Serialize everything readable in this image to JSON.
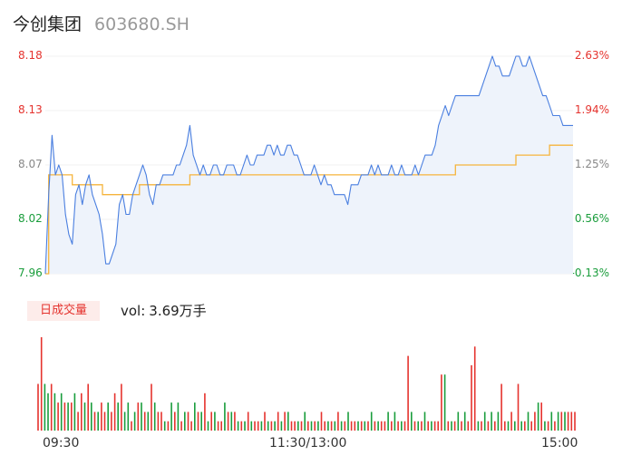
{
  "header": {
    "stock_name": "今创集团",
    "stock_code": "603680.SH"
  },
  "price_axis_labels": [
    "8.18",
    "8.13",
    "8.07",
    "8.02",
    "7.96"
  ],
  "pct_axis_labels": [
    "2.63%",
    "1.94%",
    "1.25%",
    "0.56%",
    "-0.13%"
  ],
  "volume_panel": {
    "badge": "日成交量",
    "vol_label": "vol:",
    "vol_value": "3.69万手"
  },
  "time_labels": [
    "09:30",
    "11:30/13:00",
    "15:00"
  ],
  "colors": {
    "price_line": "#4a7fe0",
    "avg_line": "#f5b43c",
    "up": "#e5332e",
    "down": "#1a9d3c",
    "flat": "#888888",
    "area_fill": "#eef3fb"
  },
  "chart_data": {
    "type": "line",
    "x_range": [
      "09:30",
      "15:00"
    ],
    "ylim": [
      7.96,
      8.18
    ],
    "y2lim": [
      -0.13,
      2.63
    ],
    "series": [
      {
        "values": [
          7.96,
          8.04,
          8.1,
          8.06,
          8.07,
          8.06,
          8.02,
          8.0,
          7.99,
          8.04,
          8.05,
          8.03,
          8.05,
          8.06,
          8.04,
          8.03,
          8.02,
          8.0,
          7.97,
          7.97,
          7.98,
          7.99,
          8.03,
          8.04,
          8.02,
          8.02,
          8.04,
          8.05,
          8.06,
          8.07,
          8.06,
          8.04,
          8.03,
          8.05,
          8.05,
          8.06,
          8.06,
          8.06,
          8.06,
          8.07,
          8.07,
          8.08,
          8.09,
          8.11,
          8.08,
          8.07,
          8.06,
          8.07,
          8.06,
          8.06,
          8.07,
          8.07,
          8.06,
          8.06,
          8.07,
          8.07,
          8.07,
          8.06,
          8.06,
          8.07,
          8.08,
          8.07,
          8.07,
          8.08,
          8.08,
          8.08,
          8.09,
          8.09,
          8.08,
          8.09,
          8.08,
          8.08,
          8.09,
          8.09,
          8.08,
          8.08,
          8.07,
          8.06,
          8.06,
          8.06,
          8.07,
          8.06,
          8.05,
          8.06,
          8.05,
          8.05,
          8.04,
          8.04,
          8.04,
          8.04,
          8.03,
          8.05,
          8.05,
          8.05,
          8.06,
          8.06,
          8.06,
          8.07,
          8.06,
          8.07,
          8.06,
          8.06,
          8.06,
          8.07,
          8.06,
          8.06,
          8.07,
          8.06,
          8.06,
          8.06,
          8.07,
          8.06,
          8.07,
          8.08,
          8.08,
          8.08,
          8.09,
          8.11,
          8.12,
          8.13,
          8.12,
          8.13,
          8.14,
          8.14,
          8.14,
          8.14,
          8.14,
          8.14,
          8.14,
          8.14,
          8.15,
          8.16,
          8.17,
          8.18,
          8.17,
          8.17,
          8.16,
          8.16,
          8.16,
          8.17,
          8.18,
          8.18,
          8.17,
          8.17,
          8.18,
          8.17,
          8.16,
          8.15,
          8.14,
          8.14,
          8.13,
          8.12,
          8.12,
          8.12,
          8.11,
          8.11,
          8.11,
          8.11
        ]
      },
      {
        "values": [
          7.96,
          8.06,
          8.06,
          8.06,
          8.06,
          8.06,
          8.06,
          8.06,
          8.05,
          8.05,
          8.05,
          8.05,
          8.05,
          8.05,
          8.05,
          8.05,
          8.05,
          8.04,
          8.04,
          8.04,
          8.04,
          8.04,
          8.04,
          8.04,
          8.04,
          8.04,
          8.04,
          8.04,
          8.05,
          8.05,
          8.05,
          8.05,
          8.05,
          8.05,
          8.05,
          8.05,
          8.05,
          8.05,
          8.05,
          8.05,
          8.05,
          8.05,
          8.05,
          8.06,
          8.06,
          8.06,
          8.06,
          8.06,
          8.06,
          8.06,
          8.06,
          8.06,
          8.06,
          8.06,
          8.06,
          8.06,
          8.06,
          8.06,
          8.06,
          8.06,
          8.06,
          8.06,
          8.06,
          8.06,
          8.06,
          8.06,
          8.06,
          8.06,
          8.06,
          8.06,
          8.06,
          8.06,
          8.06,
          8.06,
          8.06,
          8.06,
          8.06,
          8.06,
          8.06,
          8.06,
          8.06,
          8.06,
          8.06,
          8.06,
          8.06,
          8.06,
          8.06,
          8.06,
          8.06,
          8.06,
          8.06,
          8.06,
          8.06,
          8.06,
          8.06,
          8.06,
          8.06,
          8.06,
          8.06,
          8.06,
          8.06,
          8.06,
          8.06,
          8.06,
          8.06,
          8.06,
          8.06,
          8.06,
          8.06,
          8.06,
          8.06,
          8.06,
          8.06,
          8.06,
          8.06,
          8.06,
          8.06,
          8.06,
          8.06,
          8.06,
          8.06,
          8.06,
          8.07,
          8.07,
          8.07,
          8.07,
          8.07,
          8.07,
          8.07,
          8.07,
          8.07,
          8.07,
          8.07,
          8.07,
          8.07,
          8.07,
          8.07,
          8.07,
          8.07,
          8.07,
          8.08,
          8.08,
          8.08,
          8.08,
          8.08,
          8.08,
          8.08,
          8.08,
          8.08,
          8.08,
          8.09,
          8.09,
          8.09,
          8.09,
          8.09,
          8.09,
          8.09,
          8.09
        ]
      }
    ],
    "volume": {
      "values": [
        5,
        10,
        5,
        4,
        5,
        4,
        3,
        4,
        3,
        3,
        3,
        4,
        2,
        4,
        3,
        5,
        3,
        2,
        2,
        3,
        2,
        3,
        2,
        4,
        3,
        5,
        2,
        3,
        1,
        2,
        3,
        3,
        2,
        2,
        5,
        3,
        2,
        2,
        1,
        1,
        3,
        2,
        3,
        1,
        2,
        2,
        1,
        3,
        2,
        2,
        4,
        1,
        2,
        2,
        1,
        1,
        3,
        2,
        2,
        2,
        1,
        1,
        1,
        2,
        1,
        1,
        1,
        1,
        2,
        1,
        1,
        1,
        2,
        1,
        2,
        2,
        1,
        1,
        1,
        1,
        2,
        1,
        1,
        1,
        1,
        2,
        1,
        1,
        1,
        1,
        2,
        1,
        1,
        2,
        1,
        1,
        1,
        1,
        1,
        1,
        2,
        1,
        1,
        1,
        1,
        2,
        1,
        2,
        1,
        1,
        1,
        8,
        2,
        1,
        1,
        1,
        2,
        1,
        1,
        1,
        1,
        6,
        6,
        1,
        1,
        1,
        2,
        1,
        2,
        1,
        7,
        9,
        1,
        1,
        2,
        1,
        2,
        1,
        2,
        5,
        1,
        1,
        2,
        1,
        5,
        1,
        1,
        2,
        1,
        2,
        3,
        3,
        1,
        1,
        2,
        1,
        2,
        2,
        2,
        2,
        2,
        2
      ],
      "directions": [
        "up",
        "up",
        "down",
        "down",
        "up",
        "down",
        "up",
        "down",
        "up",
        "down",
        "up",
        "down",
        "up",
        "up",
        "down",
        "up",
        "down",
        "up",
        "down",
        "up",
        "up",
        "down",
        "up",
        "up",
        "down",
        "up",
        "down",
        "down",
        "up",
        "down",
        "up",
        "down",
        "up",
        "down",
        "up",
        "down",
        "up",
        "up",
        "down",
        "up",
        "down",
        "up",
        "down",
        "up",
        "down",
        "up",
        "up",
        "down",
        "up",
        "down",
        "up",
        "down",
        "up",
        "down",
        "up",
        "up",
        "down",
        "up",
        "down",
        "up",
        "down",
        "up",
        "down",
        "up",
        "down",
        "up",
        "up",
        "down",
        "up",
        "down",
        "up",
        "down",
        "up",
        "down",
        "up",
        "down",
        "up",
        "up",
        "down",
        "up",
        "down",
        "up",
        "down",
        "up",
        "down",
        "up",
        "up",
        "down",
        "up",
        "down",
        "up",
        "down",
        "up",
        "down",
        "up",
        "up",
        "down",
        "up",
        "down",
        "up",
        "down",
        "up",
        "down",
        "up",
        "up",
        "down",
        "up",
        "down",
        "up",
        "down",
        "up",
        "up",
        "down",
        "up",
        "down",
        "up",
        "down",
        "up",
        "down",
        "up",
        "up",
        "up",
        "down",
        "up",
        "down",
        "up",
        "down",
        "up",
        "down",
        "up",
        "up",
        "up",
        "down",
        "up",
        "down",
        "up",
        "down",
        "up",
        "down",
        "up",
        "up",
        "down",
        "up",
        "down",
        "up",
        "down",
        "up",
        "down",
        "up",
        "up",
        "down",
        "up",
        "down",
        "up",
        "down",
        "up",
        "down",
        "up",
        "down",
        "up",
        "up",
        "up"
      ]
    }
  }
}
